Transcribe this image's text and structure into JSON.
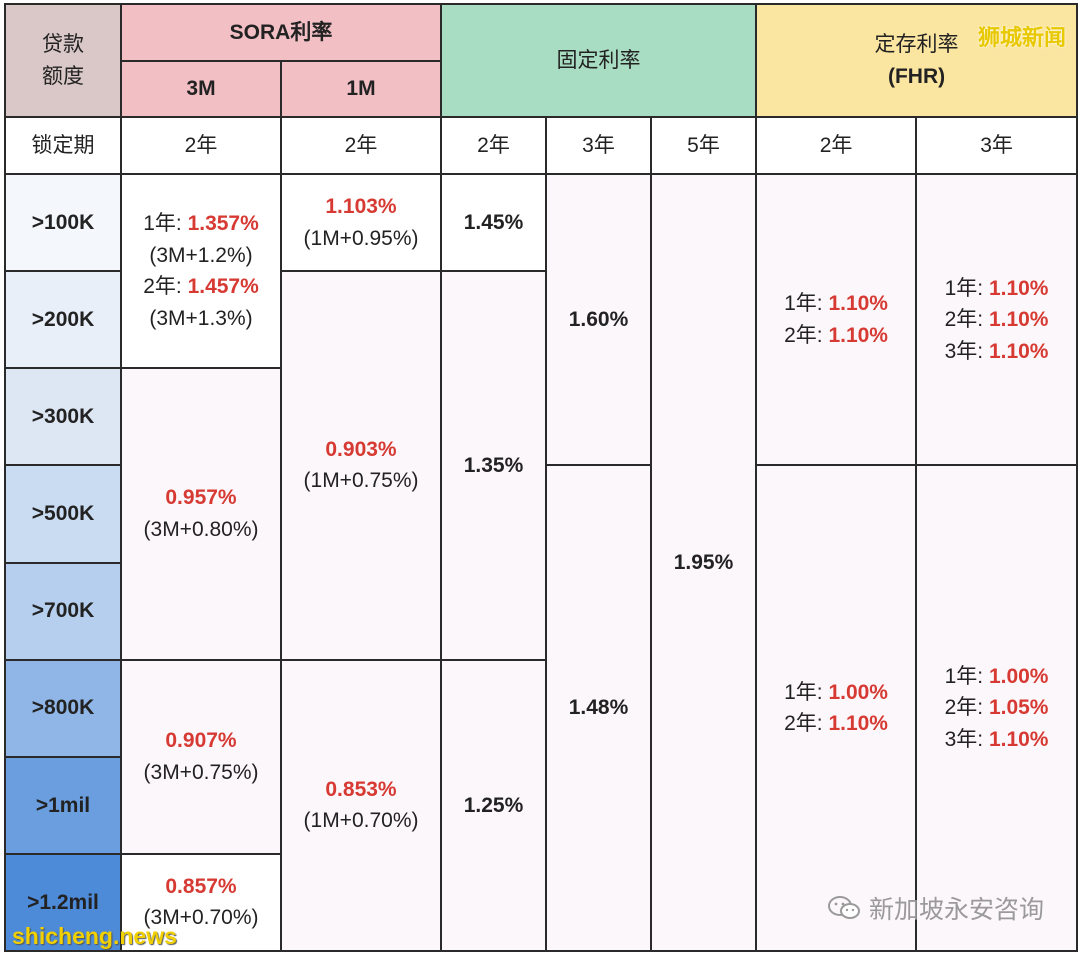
{
  "header": {
    "loan_label": "贷款额度",
    "sora_label": "SORA利率",
    "sora_3m": "3M",
    "sora_1m": "1M",
    "fixed_label": "固定利率",
    "fhr_label": "定存利率",
    "fhr_sub": "(FHR)"
  },
  "lock_row": {
    "label": "锁定期",
    "sora_3m": "2年",
    "sora_1m": "2年",
    "fixed_2y": "2年",
    "fixed_3y": "3年",
    "fixed_5y": "5年",
    "fhr_2y": "2年",
    "fhr_3y": "3年"
  },
  "tiers": [
    ">100K",
    ">200K",
    ">300K",
    ">500K",
    ">700K",
    ">800K",
    ">1mil",
    ">1.2mil"
  ],
  "sora_3m": {
    "a": {
      "y1_label": "1年:",
      "y1_rate": "1.357%",
      "y1_formula": "(3M+1.2%)",
      "y2_label": "2年:",
      "y2_rate": "1.457%",
      "y2_formula": "(3M+1.3%)"
    },
    "b": {
      "rate": "0.957%",
      "formula": "(3M+0.80%)"
    },
    "c": {
      "rate": "0.907%",
      "formula": "(3M+0.75%)"
    },
    "d": {
      "rate": "0.857%",
      "formula": "(3M+0.70%)"
    }
  },
  "sora_1m": {
    "a": {
      "rate": "1.103%",
      "formula": "(1M+0.95%)"
    },
    "b": {
      "rate": "0.903%",
      "formula": "(1M+0.75%)"
    },
    "c": {
      "rate": "0.853%",
      "formula": "(1M+0.70%)"
    }
  },
  "fixed_2y": {
    "a": "1.45%",
    "b": "1.35%",
    "c": "1.25%"
  },
  "fixed_3y": {
    "a": "1.60%",
    "b": "1.48%"
  },
  "fixed_5y": {
    "a": "1.95%"
  },
  "fhr_2y": {
    "a": {
      "l1": "1年:",
      "r1": "1.10%",
      "l2": "2年:",
      "r2": "1.10%"
    },
    "b": {
      "l1": "1年:",
      "r1": "1.00%",
      "l2": "2年:",
      "r2": "1.10%"
    }
  },
  "fhr_3y": {
    "a": {
      "l1": "1年:",
      "r1": "1.10%",
      "l2": "2年:",
      "r2": "1.10%",
      "l3": "3年:",
      "r3": "1.10%"
    },
    "b": {
      "l1": "1年:",
      "r1": "1.00%",
      "l2": "2年:",
      "r2": "1.05%",
      "l3": "3年:",
      "r3": "1.10%"
    }
  },
  "watermarks": {
    "top_right": "狮城新闻",
    "bottom_left": "shicheng.news",
    "bottom_right": "新加坡永安咨询",
    "bottom_right_icon": "wechat-icon"
  }
}
